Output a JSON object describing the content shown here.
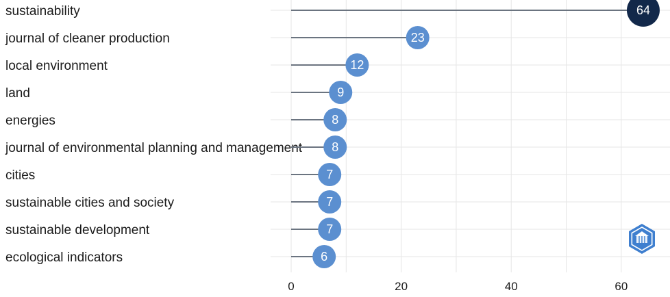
{
  "chart_data": {
    "type": "lollipop",
    "categories": [
      "sustainability",
      "journal of cleaner production",
      "local environment",
      "land",
      "energies",
      "journal of environmental planning and management",
      "cities",
      "sustainable cities and society",
      "sustainable development",
      "ecological indicators"
    ],
    "values": [
      64,
      23,
      12,
      9,
      8,
      8,
      7,
      7,
      7,
      6
    ],
    "value_labels": [
      "64",
      "23",
      "12",
      "9",
      "8",
      "8",
      "7",
      "7",
      "7",
      "6"
    ],
    "x_ticks": [
      "0",
      "20",
      "40",
      "60"
    ],
    "tick_values": [
      0,
      20,
      40,
      60
    ],
    "xlim": [
      0,
      65
    ],
    "grid": true,
    "colors": {
      "highlight": "#12284a",
      "default": "#5b8fd0",
      "stem": "#6b7480",
      "grid": "#e6e6e6"
    },
    "logo_icon": "hexagon-logo-icon"
  }
}
